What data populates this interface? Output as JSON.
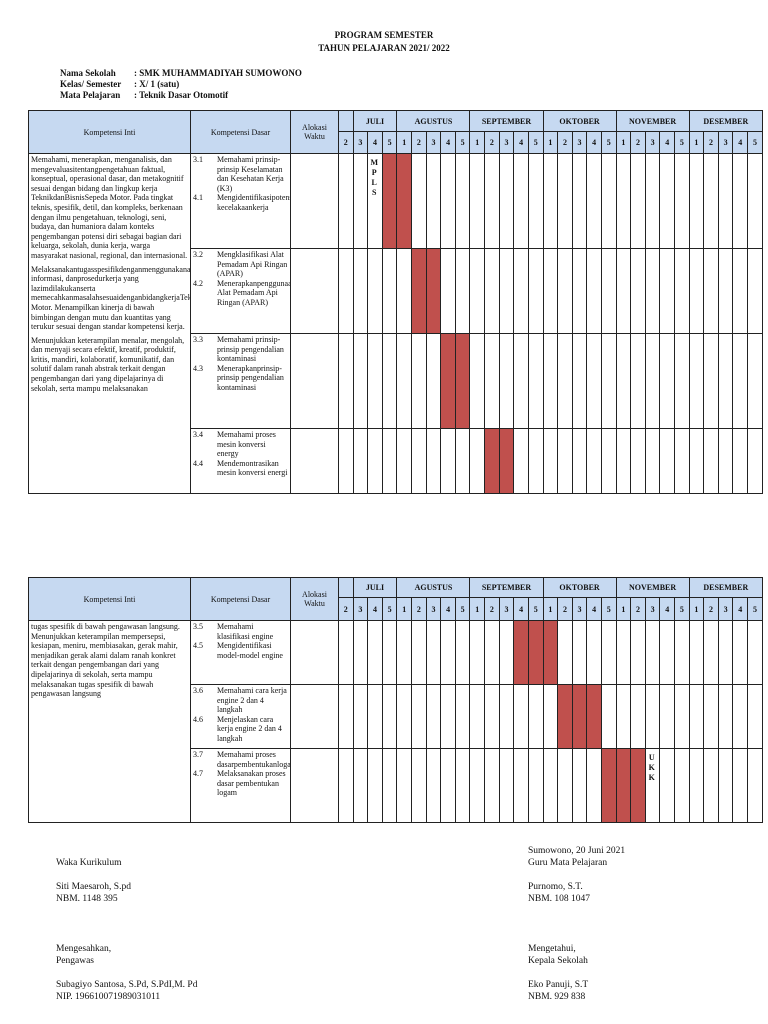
{
  "header": {
    "title": "PROGRAM SEMESTER",
    "subtitle": "TAHUN PELAJARAN 2021/ 2022"
  },
  "info": [
    {
      "label": "Nama Sekolah",
      "value": ": SMK MUHAMMADIYAH SUMOWONO"
    },
    {
      "label": "Kelas/   Semester",
      "value": ": X/ 1 (satu)"
    },
    {
      "label": "Mata Pelajaran",
      "value": ": Teknik Dasar Otomotif"
    }
  ],
  "columns": {
    "ki": "Kompetensi Inti",
    "kd": "Kompetensi Dasar",
    "alokasi": "Alokasi Waktu"
  },
  "months": [
    {
      "label": "",
      "span": 1
    },
    {
      "label": "JULI",
      "span": 3
    },
    {
      "label": "AGUSTUS",
      "span": 5
    },
    {
      "label": "SEPTEMBER",
      "span": 5
    },
    {
      "label": "OKTOBER",
      "span": 5
    },
    {
      "label": "NOVEMBER",
      "span": 5
    },
    {
      "label": "DESEMBER",
      "span": 5
    }
  ],
  "weeks": [
    "2",
    "3",
    "4",
    "5",
    "1",
    "2",
    "3",
    "4",
    "5",
    "1",
    "2",
    "3",
    "4",
    "5",
    "1",
    "2",
    "3",
    "4",
    "5",
    "1",
    "2",
    "3",
    "4",
    "5",
    "1",
    "2",
    "3",
    "4",
    "5"
  ],
  "colors": {
    "header": "#c6d9f1",
    "mark": "#c0504d"
  },
  "tables": [
    {
      "ki": [
        "Memahami, menerapkan, menganalisis, dan mengevaluasitentangpengetahuan faktual, konseptual, operasional dasar, dan metakognitif sesuai dengan bidang dan lingkup kerja TeknikdanBisnisSepeda Motor. Pada tingkat teknis, spesifik, detil, dan kompleks, berkenaan dengan ilmu pengetahuan, teknologi, seni, budaya, dan humaniora dalam konteks pengembangan potensi diri sebagai bagian dari keluarga, sekolah, dunia kerja, warga masyarakat nasional, regional, dan internasional.",
        "Melaksanakantugasspesifikdenganmenggunakanalat, informasi, danprosedurkerja yang lazimdilakukanserta memecahkanmasalahsesuaidenganbidangkerjaTeknikdanBisnisSepeda Motor. Menampilkan kinerja di bawah bimbingan dengan mutu dan kuantitas yang terukur sesuai dengan standar kompetensi kerja.",
        "Menunjukkan keterampilan menalar, mengolah, dan menyaji secara efektif, kreatif, produktif, kritis, mandiri, kolaboratif, komunikatif, dan solutif dalam ranah abstrak terkait dengan pengembangan dari yang dipelajarinya di sekolah, serta mampu melaksanakan"
      ],
      "rows": [
        {
          "kd": [
            {
              "n": "3.1",
              "t": "Memahami prinsip-prinsip Keselamatan dan Kesehatan Kerja (K3)"
            },
            {
              "n": "4.1",
              "t": "Mengidentifikasipotensidanresiko kecelakaankerja"
            }
          ],
          "marks": [
            3,
            4
          ],
          "note_col": 2,
          "note": "MPLS"
        },
        {
          "kd": [
            {
              "n": "3.2",
              "t": "Mengklasifikasi Alat Pemadam Api Ringan (APAR)"
            },
            {
              "n": "4.2",
              "t": "Menerapkanpenggunaan Alat Pemadam Api Ringan (APAR)"
            }
          ],
          "marks": [
            5,
            6
          ]
        },
        {
          "kd": [
            {
              "n": "3.3",
              "t": "Memahami prinsip-prinsip pengendalian kontaminasi"
            },
            {
              "n": "4.3",
              "t": "Menerapkanprinsip-prinsip pengendalian kontaminasi"
            }
          ],
          "marks": [
            7,
            8
          ]
        },
        {
          "kd": [
            {
              "n": "3.4",
              "t": "Memahami proses mesin konversi energy"
            },
            {
              "n": "4.4",
              "t": "Mendemontrasikan mesin konversi energi"
            }
          ],
          "marks": [
            10,
            11
          ]
        }
      ]
    },
    {
      "ki": [
        "tugas spesifik di bawah pengawasan langsung. Menunjukkan keterampilan mempersepsi, kesiapan, meniru, membiasakan, gerak mahir, menjadikan gerak alami dalam ranah konkret terkait dengan pengembangan dari yang dipelajarinya di sekolah, serta mampu melaksanakan tugas spesifik di bawah pengawasan langsung"
      ],
      "rows": [
        {
          "kd": [
            {
              "n": "3.5",
              "t": "Memahami klasifikasi engine"
            },
            {
              "n": "4.5",
              "t": "Mengidentifikasi model-model engine"
            }
          ],
          "marks": [
            12,
            13,
            14
          ]
        },
        {
          "kd": [
            {
              "n": "3.6",
              "t": "Memahami cara kerja engine 2 dan 4 langkah"
            },
            {
              "n": "4.6",
              "t": "Menjelaskan cara kerja engine 2 dan 4 langkah"
            }
          ],
          "marks": [
            15,
            16,
            17
          ]
        },
        {
          "kd": [
            {
              "n": "3.7",
              "t": "Memahami proses dasarpembentukanlogam"
            },
            {
              "n": "4.7",
              "t": "Melaksanakan proses dasar pembentukan logam"
            }
          ],
          "marks": [
            18,
            19,
            20
          ],
          "note_col": 21,
          "note": "UKK"
        }
      ]
    }
  ],
  "signatures": {
    "place_date": "Sumowono, 20 Juni 2021",
    "left_top": {
      "role": "Waka Kurikulum",
      "name": "Siti Maesaroh, S.pd",
      "id": "NBM. 1148 395"
    },
    "right_top": {
      "role": "Guru Mata Pelajaran",
      "name": "Purnomo, S.T.",
      "id": "NBM. 108 1047"
    },
    "left_bottom": {
      "intro": "Mengesahkan,",
      "role": "Pengawas",
      "name": "Subagiyo Santosa, S.Pd, S.PdI,M. Pd",
      "id": "NIP. 196610071989031011"
    },
    "right_bottom": {
      "intro": "Mengetahui,",
      "role": "Kepala Sekolah",
      "name": "Eko Panuji, S.T",
      "id": "NBM. 929 838"
    }
  }
}
